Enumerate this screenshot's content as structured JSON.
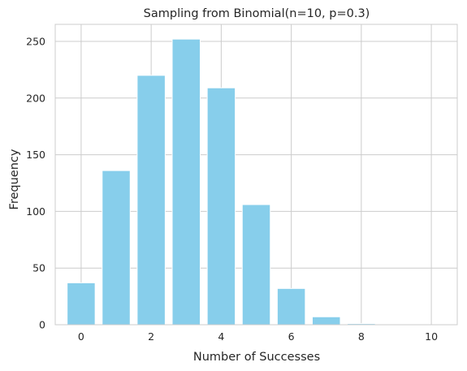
{
  "chart_data": {
    "type": "bar",
    "title": "Sampling from Binomial(n=10, p=0.3)",
    "xlabel": "Number of Successes",
    "ylabel": "Frequency",
    "x": [
      0,
      1,
      2,
      3,
      4,
      5,
      6,
      7,
      8,
      9,
      10
    ],
    "values": [
      37,
      136,
      220,
      252,
      209,
      106,
      32,
      7,
      1,
      0,
      0
    ],
    "xlim": [
      -0.74,
      10.74
    ],
    "ylim": [
      0,
      265
    ],
    "xticks": [
      0,
      2,
      4,
      6,
      8,
      10
    ],
    "yticks": [
      0,
      50,
      100,
      150,
      200,
      250
    ],
    "grid": true,
    "bar_color": "#87CEEB",
    "grid_color": "#cccccc",
    "axes_edge_color": "#cccccc"
  }
}
